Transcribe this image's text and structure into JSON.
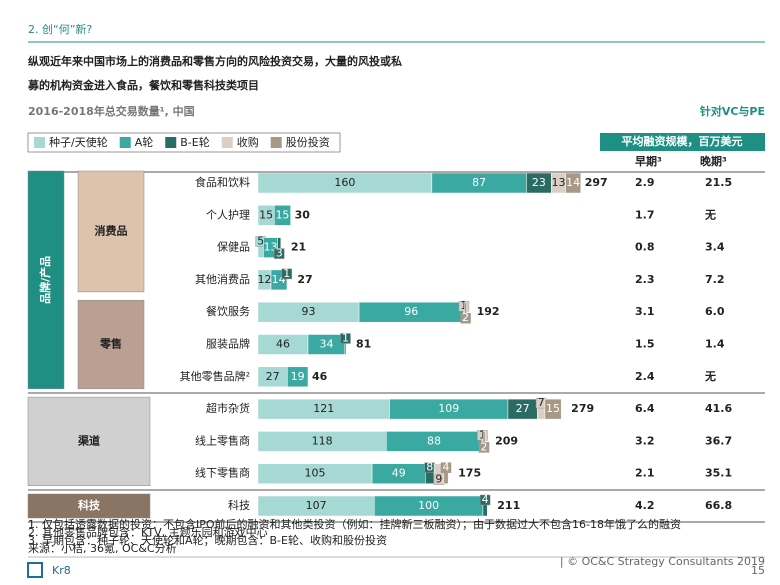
{
  "header": {
    "section": "2. 创“何”新?",
    "title_lines": [
      "纵观近年来中国市场上的消费品和零售方向的风险投资交易，大量的风投或私",
      "募的机构资金进入食品，餐饮和零售科技类项目"
    ],
    "subtitle": "2016-2018年总交易数量¹, 中国",
    "scope": "针对VC与PE"
  },
  "chart_data": {
    "type": "stacked-bar-horizontal",
    "categories": [
      "食品和饮料",
      "个人护理",
      "保健品",
      "其他消费品",
      "餐饮服务",
      "服装品牌",
      "其他零售品牌²",
      "超市杂货",
      "线上零售商",
      "线下零售商",
      "科技"
    ],
    "series": [
      {
        "name": "种子/天使轮",
        "color": "#a6d9d4",
        "values": [
          160,
          15,
          5,
          12,
          93,
          46,
          27,
          121,
          118,
          105,
          107
        ]
      },
      {
        "name": "A轮",
        "color": "#3aa9a2",
        "values": [
          87,
          15,
          13,
          14,
          96,
          34,
          19,
          109,
          88,
          49,
          100
        ]
      },
      {
        "name": "B-E轮",
        "color": "#2a6b63",
        "values": [
          23,
          null,
          3,
          1,
          null,
          1,
          null,
          27,
          null,
          8,
          4
        ]
      },
      {
        "name": "收购",
        "color": "#d9cfc5",
        "values": [
          13,
          null,
          null,
          null,
          1,
          null,
          null,
          7,
          1,
          9,
          null
        ]
      },
      {
        "name": "股份投资",
        "color": "#a89886",
        "values": [
          14,
          null,
          null,
          null,
          2,
          null,
          null,
          15,
          2,
          4,
          null
        ]
      }
    ],
    "totals": [
      297,
      30,
      21,
      27,
      192,
      81,
      46,
      279,
      209,
      175,
      211
    ],
    "xlim": [
      0,
      300
    ],
    "legend": "top-left",
    "groups": [
      {
        "label": "品牌/产品",
        "from": 0,
        "to": 6,
        "color": "#1f8f84"
      },
      {
        "label": "消费品",
        "from": 0,
        "to": 3,
        "color": "#dcc3ab"
      },
      {
        "label": "零售",
        "from": 4,
        "to": 6,
        "color": "#b9a092"
      },
      {
        "label": "渠道",
        "from": 7,
        "to": 9,
        "color": "#d0d0d0"
      },
      {
        "label": "科技",
        "from": 10,
        "to": 10,
        "color": "#8a7564"
      }
    ]
  },
  "table": {
    "title": "平均融资规模，百万美元",
    "headers": [
      "早期³",
      "晚期³"
    ],
    "rows": [
      [
        "2.9",
        "21.5"
      ],
      [
        "1.7",
        "无"
      ],
      [
        "0.8",
        "3.4"
      ],
      [
        "2.3",
        "7.2"
      ],
      [
        "3.1",
        "6.0"
      ],
      [
        "1.5",
        "1.4"
      ],
      [
        "2.4",
        "无"
      ],
      [
        "6.4",
        "41.6"
      ],
      [
        "3.2",
        "36.7"
      ],
      [
        "2.1",
        "35.1"
      ],
      [
        "4.2",
        "66.8"
      ]
    ]
  },
  "footer": {
    "notes": [
      "1. 仅包括透露数据的投资：不包含IPO前后的融资和其他类投资（例如：挂牌新三板融资）；由于数据过大不包含16-18年饿了么的融资",
      "2. 其他零售品牌包含：KTV, 主题乐园和游戏中心",
      "3. 早期包含：种子轮、天使轮和A轮；晚期包含：B-E轮、收购和股份投资",
      "来源：小桔, 36氪, OC&C分析"
    ],
    "copyright": "| © OC&C Strategy Consultants 2019",
    "page": "15",
    "logo": "Kr8"
  }
}
